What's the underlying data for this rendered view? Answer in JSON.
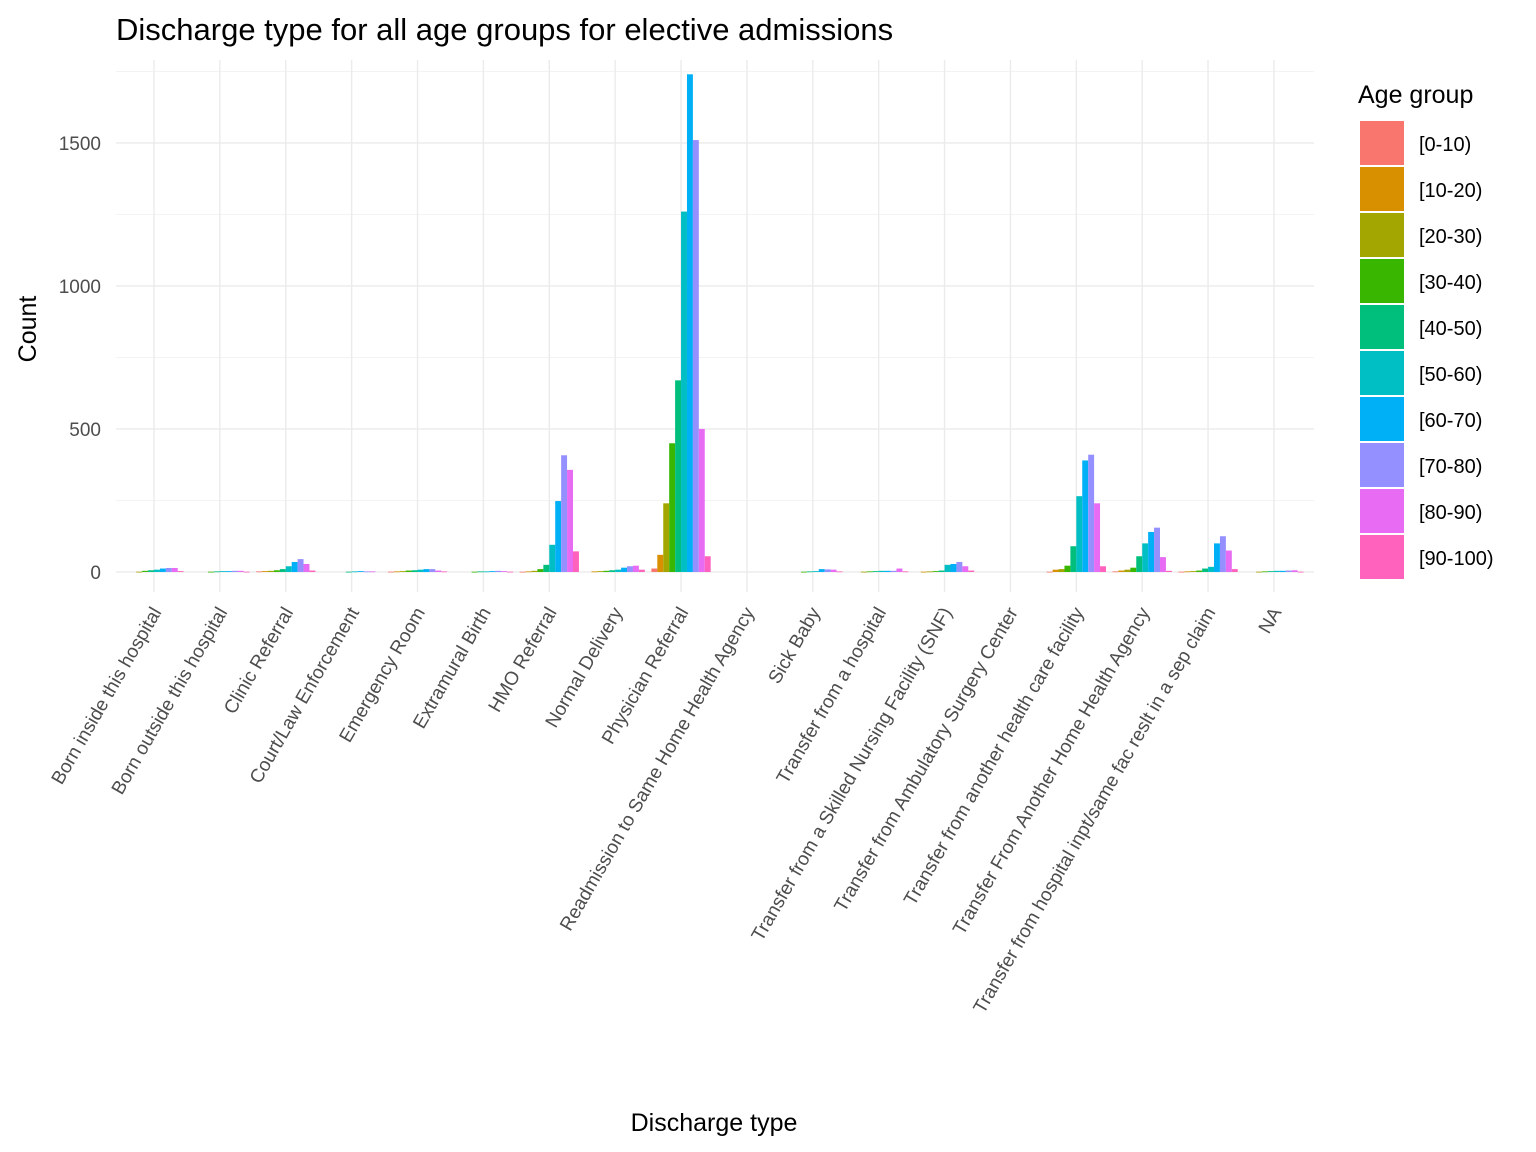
{
  "chart_data": {
    "type": "bar",
    "title": "Discharge type for all age groups for elective admissions",
    "xlabel": "Discharge type",
    "ylabel": "Count",
    "ylim": [
      -70,
      1790
    ],
    "yticks": [
      0,
      500,
      1000,
      1500
    ],
    "grid": true,
    "legend": {
      "title": "Age group",
      "position": "right"
    },
    "categories": [
      "Born inside this hospital",
      "Born outside this hospital",
      "Clinic Referral",
      "Court/Law Enforcement",
      "Emergency Room",
      "Extramural Birth",
      "HMO Referral",
      "Normal Delivery",
      "Physician Referral",
      "Readmission to Same Home Health Agency",
      "Sick Baby",
      "Transfer from a hospital",
      "Transfer from a Skilled Nursing Facility (SNF)",
      "Transfer from Ambulatory Surgery Center",
      "Transfer from another health care facility",
      "Transfer From Another Home Health Agency",
      "Transfer from hospital inpt/same fac reslt in a sep claim",
      "NA"
    ],
    "series": [
      {
        "name": "[0-10)",
        "color": "#F8766D",
        "values": [
          0,
          0,
          2,
          0,
          1,
          0,
          1,
          0,
          12,
          0,
          0,
          0,
          0,
          0,
          1,
          2,
          1,
          0
        ]
      },
      {
        "name": "[10-20)",
        "color": "#D89000",
        "values": [
          0,
          0,
          3,
          0,
          2,
          0,
          2,
          2,
          60,
          0,
          0,
          0,
          1,
          0,
          8,
          5,
          2,
          0
        ]
      },
      {
        "name": "[20-30)",
        "color": "#A3A500",
        "values": [
          1,
          0,
          4,
          0,
          3,
          0,
          4,
          3,
          240,
          0,
          0,
          1,
          2,
          0,
          10,
          8,
          3,
          1
        ]
      },
      {
        "name": "[30-40)",
        "color": "#39B600",
        "values": [
          4,
          1,
          6,
          0,
          5,
          1,
          10,
          4,
          450,
          0,
          1,
          2,
          3,
          0,
          22,
          15,
          5,
          2
        ]
      },
      {
        "name": "[40-50)",
        "color": "#00BF7D",
        "values": [
          6,
          2,
          10,
          1,
          6,
          2,
          25,
          6,
          670,
          0,
          2,
          3,
          5,
          0,
          90,
          55,
          12,
          3
        ]
      },
      {
        "name": "[50-60)",
        "color": "#00BFC4",
        "values": [
          8,
          3,
          20,
          2,
          8,
          2,
          95,
          8,
          1260,
          0,
          3,
          4,
          25,
          0,
          265,
          100,
          18,
          4
        ]
      },
      {
        "name": "[60-70)",
        "color": "#00B0F6",
        "values": [
          12,
          3,
          35,
          3,
          10,
          3,
          248,
          15,
          1740,
          0,
          10,
          4,
          28,
          0,
          390,
          140,
          100,
          4
        ]
      },
      {
        "name": "[70-80)",
        "color": "#9590FF",
        "values": [
          14,
          4,
          45,
          2,
          10,
          4,
          408,
          20,
          1510,
          0,
          9,
          4,
          35,
          0,
          410,
          155,
          125,
          5
        ]
      },
      {
        "name": "[80-90)",
        "color": "#E76BF3",
        "values": [
          14,
          4,
          28,
          2,
          5,
          3,
          357,
          22,
          500,
          0,
          8,
          12,
          20,
          0,
          240,
          52,
          75,
          6
        ]
      },
      {
        "name": "[90-100)",
        "color": "#FF62BC",
        "values": [
          3,
          1,
          5,
          0,
          2,
          1,
          72,
          8,
          55,
          0,
          2,
          2,
          5,
          0,
          20,
          4,
          10,
          1
        ]
      }
    ]
  }
}
